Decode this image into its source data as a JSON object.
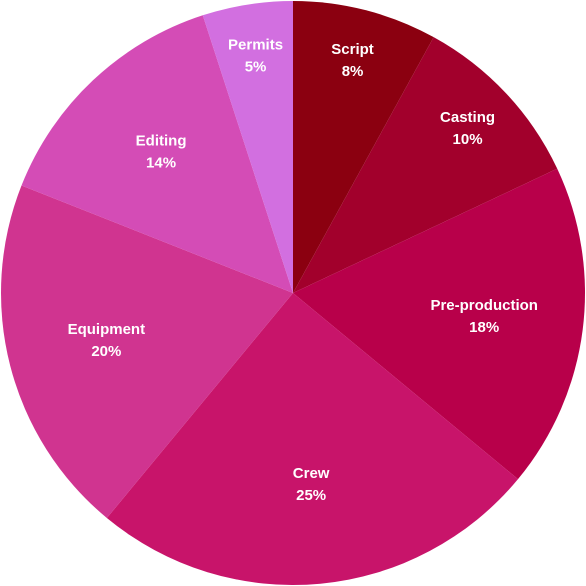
{
  "chart_data": {
    "type": "pie",
    "categories": [
      "Script",
      "Casting",
      "Pre-production",
      "Crew",
      "Equipment",
      "Editing",
      "Permits"
    ],
    "values": [
      8,
      10,
      18,
      25,
      20,
      14,
      5
    ],
    "value_labels": [
      "8%",
      "10%",
      "18%",
      "25%",
      "20%",
      "14%",
      "5%"
    ],
    "colors": [
      "#8b0010",
      "#a2002c",
      "#b8004a",
      "#c8146a",
      "#d03490",
      "#d44cb6",
      "#d26fe0"
    ]
  }
}
